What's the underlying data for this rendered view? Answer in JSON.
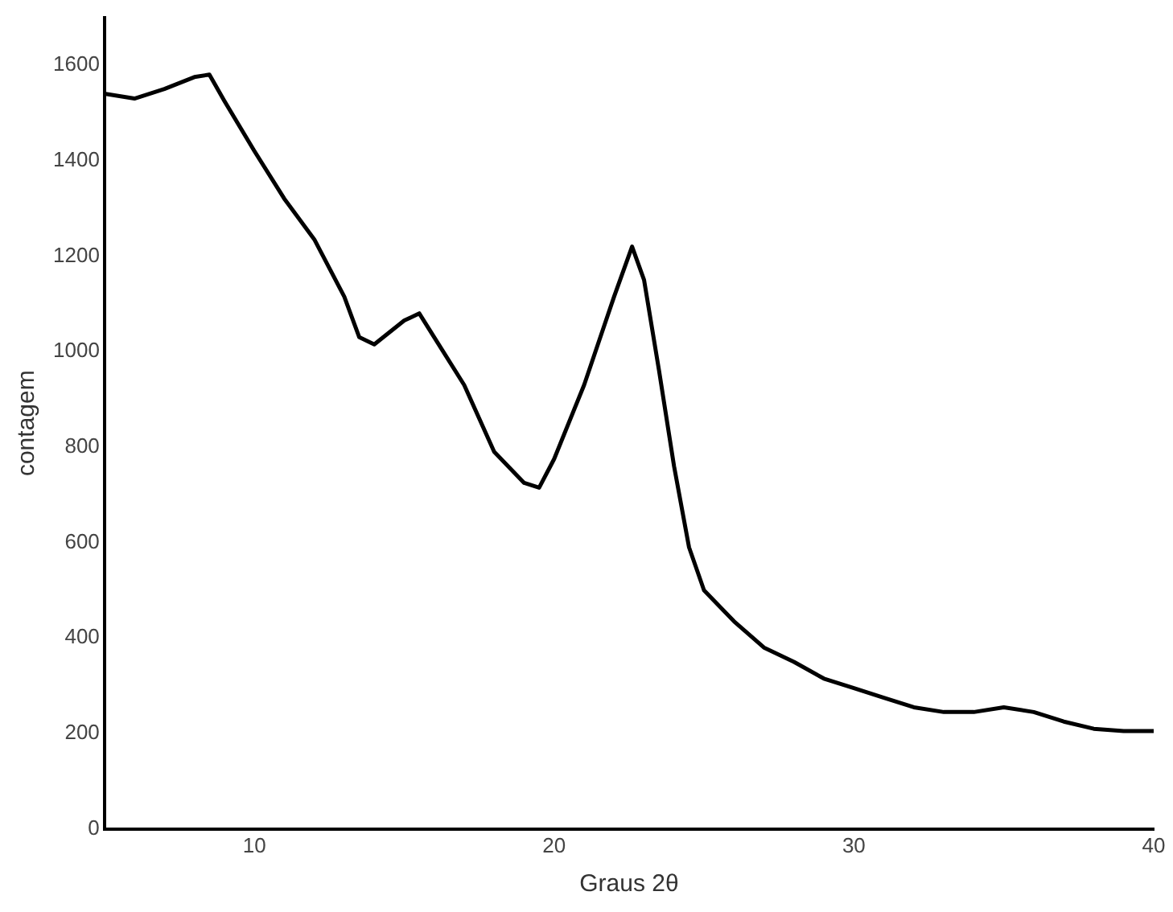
{
  "chart_data": {
    "type": "line",
    "xlabel": "Graus 2θ",
    "ylabel": "contagem",
    "x": [
      5,
      6,
      7,
      8,
      8.5,
      9,
      10,
      11,
      12,
      13,
      13.5,
      14,
      15,
      15.5,
      16,
      17,
      18,
      19,
      19.5,
      20,
      21,
      22,
      22.6,
      23,
      23.5,
      24,
      24.5,
      25,
      26,
      27,
      28,
      29,
      30,
      31,
      32,
      33,
      34,
      35,
      36,
      37,
      38,
      39,
      40
    ],
    "series": [
      {
        "color": "#000000",
        "values": [
          1540,
          1530,
          1550,
          1575,
          1580,
          1525,
          1420,
          1320,
          1235,
          1115,
          1030,
          1015,
          1065,
          1080,
          1030,
          930,
          790,
          725,
          715,
          775,
          930,
          1115,
          1220,
          1150,
          960,
          760,
          590,
          500,
          435,
          380,
          350,
          315,
          295,
          275,
          255,
          245,
          245,
          255,
          245,
          225,
          210,
          205,
          205
        ]
      }
    ],
    "xlim": [
      5,
      40
    ],
    "xticks": [
      10,
      20,
      30,
      40
    ],
    "ylim": [
      0,
      1700
    ],
    "yticks": [
      0,
      200,
      400,
      600,
      800,
      1000,
      1200,
      1400,
      1600
    ],
    "grid": false,
    "legend": false,
    "marker": "none",
    "line_style": "solid"
  }
}
